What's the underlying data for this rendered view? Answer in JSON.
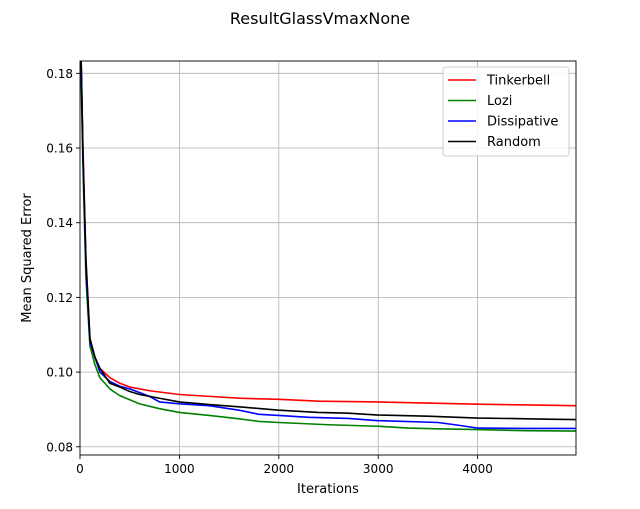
{
  "chart_data": {
    "type": "line",
    "title": "ResultGlassVmaxNone",
    "xlabel": "Iterations",
    "ylabel": "Mean Squared Error",
    "xlim": [
      0,
      4990
    ],
    "ylim": [
      0.0778,
      0.1833
    ],
    "xticks": [
      0,
      1000,
      2000,
      3000,
      4000
    ],
    "yticks": [
      0.08,
      0.1,
      0.12,
      0.14,
      0.16,
      0.18
    ],
    "xtick_labels": [
      "0",
      "1000",
      "2000",
      "3000",
      "4000"
    ],
    "ytick_labels": [
      "0.08",
      "0.10",
      "0.12",
      "0.14",
      "0.16",
      "0.18"
    ],
    "grid": true,
    "legend_position": "top-right",
    "series": [
      {
        "name": "Tinkerbell",
        "color": "#ff0000",
        "points": [
          [
            0,
            0.19
          ],
          [
            10,
            0.185
          ],
          [
            30,
            0.16
          ],
          [
            60,
            0.13
          ],
          [
            100,
            0.109
          ],
          [
            150,
            0.104
          ],
          [
            200,
            0.101
          ],
          [
            300,
            0.0985
          ],
          [
            400,
            0.097
          ],
          [
            500,
            0.096
          ],
          [
            700,
            0.095
          ],
          [
            1000,
            0.094
          ],
          [
            1300,
            0.0935
          ],
          [
            1600,
            0.093
          ],
          [
            2000,
            0.0927
          ],
          [
            2400,
            0.0922
          ],
          [
            3000,
            0.092
          ],
          [
            3500,
            0.0917
          ],
          [
            4000,
            0.0914
          ],
          [
            4500,
            0.0912
          ],
          [
            4990,
            0.091
          ]
        ]
      },
      {
        "name": "Lozi",
        "color": "#008000",
        "points": [
          [
            0,
            0.185
          ],
          [
            10,
            0.18
          ],
          [
            30,
            0.155
          ],
          [
            60,
            0.125
          ],
          [
            100,
            0.107
          ],
          [
            150,
            0.102
          ],
          [
            200,
            0.0985
          ],
          [
            300,
            0.0955
          ],
          [
            400,
            0.0937
          ],
          [
            600,
            0.0915
          ],
          [
            800,
            0.0902
          ],
          [
            1000,
            0.0892
          ],
          [
            1300,
            0.0884
          ],
          [
            1600,
            0.0875
          ],
          [
            1800,
            0.0868
          ],
          [
            2000,
            0.0865
          ],
          [
            2500,
            0.0859
          ],
          [
            3000,
            0.0855
          ],
          [
            3300,
            0.085
          ],
          [
            3600,
            0.0848
          ],
          [
            4000,
            0.0846
          ],
          [
            4500,
            0.0843
          ],
          [
            4990,
            0.0842
          ]
        ]
      },
      {
        "name": "Dissipative",
        "color": "#0000ff",
        "points": [
          [
            0,
            0.19
          ],
          [
            10,
            0.185
          ],
          [
            30,
            0.158
          ],
          [
            60,
            0.128
          ],
          [
            100,
            0.108
          ],
          [
            150,
            0.104
          ],
          [
            200,
            0.1
          ],
          [
            300,
            0.0975
          ],
          [
            400,
            0.0962
          ],
          [
            500,
            0.0955
          ],
          [
            600,
            0.0945
          ],
          [
            700,
            0.0935
          ],
          [
            800,
            0.092
          ],
          [
            1000,
            0.0915
          ],
          [
            1300,
            0.091
          ],
          [
            1600,
            0.0898
          ],
          [
            1800,
            0.0887
          ],
          [
            2000,
            0.0884
          ],
          [
            2300,
            0.0879
          ],
          [
            2700,
            0.0876
          ],
          [
            3000,
            0.087
          ],
          [
            3600,
            0.0865
          ],
          [
            3800,
            0.0858
          ],
          [
            4000,
            0.085
          ],
          [
            4500,
            0.0849
          ],
          [
            4990,
            0.0849
          ]
        ]
      },
      {
        "name": "Random",
        "color": "#000000",
        "points": [
          [
            0,
            0.19
          ],
          [
            10,
            0.186
          ],
          [
            30,
            0.158
          ],
          [
            60,
            0.13
          ],
          [
            100,
            0.109
          ],
          [
            150,
            0.104
          ],
          [
            200,
            0.101
          ],
          [
            300,
            0.097
          ],
          [
            400,
            0.096
          ],
          [
            500,
            0.0948
          ],
          [
            600,
            0.094
          ],
          [
            700,
            0.0935
          ],
          [
            800,
            0.093
          ],
          [
            1000,
            0.092
          ],
          [
            1300,
            0.0913
          ],
          [
            1600,
            0.0907
          ],
          [
            2000,
            0.0898
          ],
          [
            2400,
            0.0892
          ],
          [
            2700,
            0.089
          ],
          [
            3000,
            0.0885
          ],
          [
            3500,
            0.0882
          ],
          [
            4000,
            0.0877
          ],
          [
            4500,
            0.0875
          ],
          [
            4700,
            0.0874
          ],
          [
            4990,
            0.0873
          ]
        ]
      }
    ]
  }
}
